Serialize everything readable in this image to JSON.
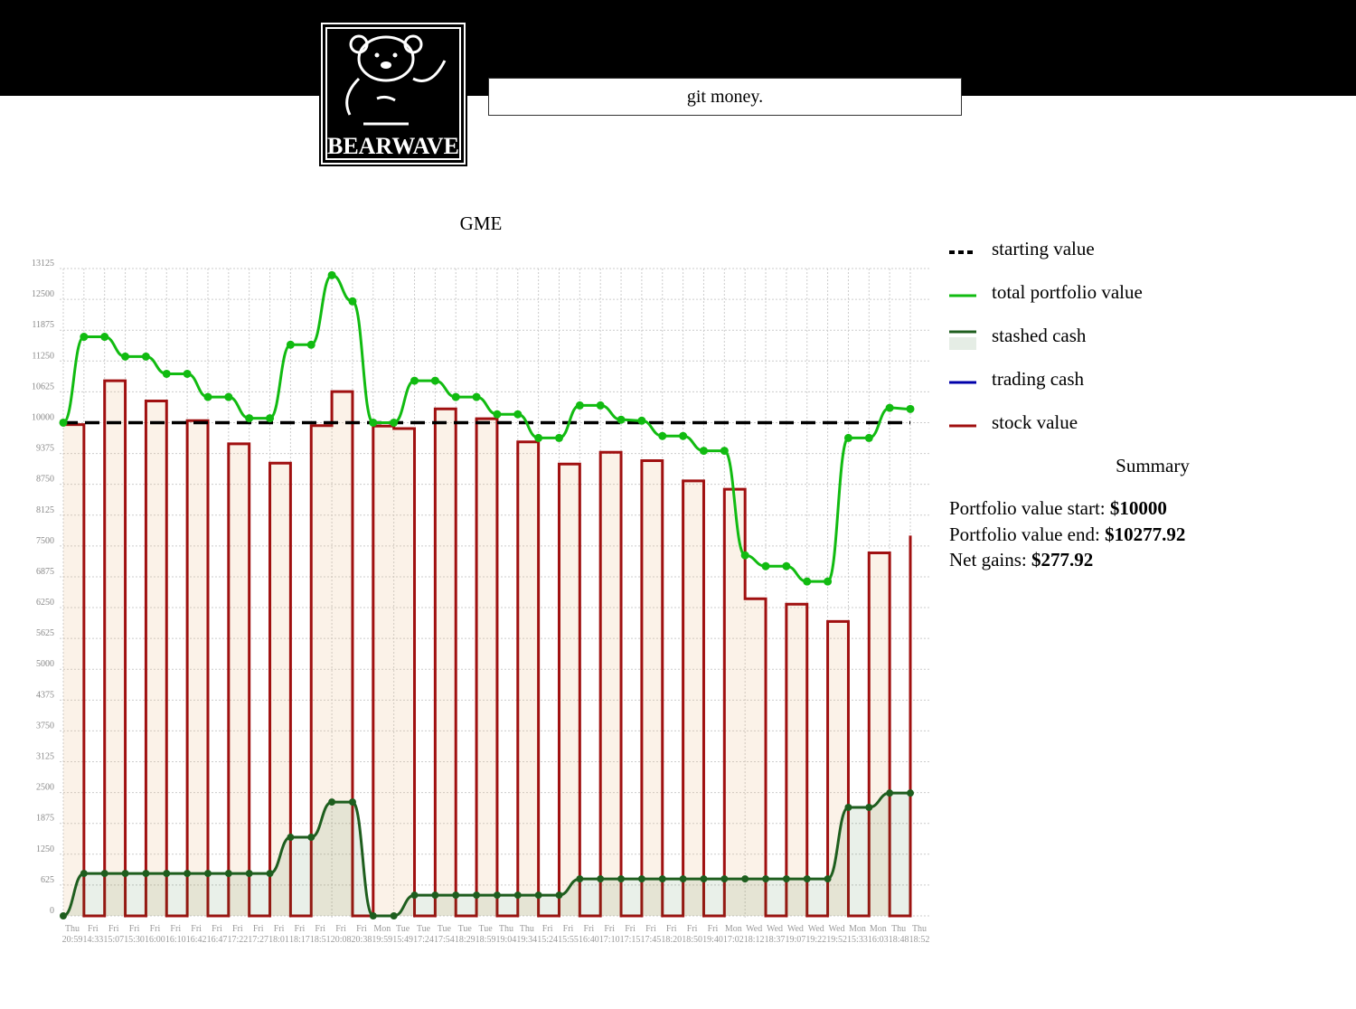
{
  "header": {
    "logo_text": "BEARWAVE",
    "tagline": "git money."
  },
  "chart_data": {
    "type": "line",
    "title": "GME",
    "categories": [
      [
        "Thu",
        "20:59"
      ],
      [
        "Fri",
        "14:33"
      ],
      [
        "Fri",
        "15:07"
      ],
      [
        "Fri",
        "15:30"
      ],
      [
        "Fri",
        "16:00"
      ],
      [
        "Fri",
        "16:10"
      ],
      [
        "Fri",
        "16:42"
      ],
      [
        "Fri",
        "16:47"
      ],
      [
        "Fri",
        "17:22"
      ],
      [
        "Fri",
        "17:27"
      ],
      [
        "Fri",
        "18:01"
      ],
      [
        "Fri",
        "18:17"
      ],
      [
        "Fri",
        "18:51"
      ],
      [
        "Fri",
        "20:08"
      ],
      [
        "Fri",
        "20:38"
      ],
      [
        "Mon",
        "19:59"
      ],
      [
        "Tue",
        "15:49"
      ],
      [
        "Tue",
        "17:24"
      ],
      [
        "Tue",
        "17:54"
      ],
      [
        "Tue",
        "18:29"
      ],
      [
        "Tue",
        "18:59"
      ],
      [
        "Thu",
        "19:04"
      ],
      [
        "Thu",
        "19:34"
      ],
      [
        "Fri",
        "15:24"
      ],
      [
        "Fri",
        "15:55"
      ],
      [
        "Fri",
        "16:40"
      ],
      [
        "Fri",
        "17:10"
      ],
      [
        "Fri",
        "17:15"
      ],
      [
        "Fri",
        "17:45"
      ],
      [
        "Fri",
        "18:20"
      ],
      [
        "Fri",
        "18:50"
      ],
      [
        "Fri",
        "19:40"
      ],
      [
        "Mon",
        "17:02"
      ],
      [
        "Wed",
        "18:12"
      ],
      [
        "Wed",
        "18:37"
      ],
      [
        "Wed",
        "19:07"
      ],
      [
        "Wed",
        "19:22"
      ],
      [
        "Wed",
        "19:52"
      ],
      [
        "Mon",
        "15:33"
      ],
      [
        "Mon",
        "16:03"
      ],
      [
        "Thu",
        "18:48"
      ],
      [
        "Thu",
        "18:52"
      ]
    ],
    "ylim": [
      0,
      13125
    ],
    "yticks": [
      0,
      625,
      1250,
      1875,
      2500,
      3125,
      3750,
      4375,
      5000,
      5625,
      6250,
      6875,
      7500,
      8125,
      8750,
      9375,
      10000,
      10625,
      11250,
      11875,
      12500,
      13125
    ],
    "grid": true,
    "series": [
      {
        "name": "starting value",
        "color": "#000000",
        "value": 10000
      },
      {
        "name": "total portfolio value",
        "color": "#11bb11",
        "values": [
          10000,
          11740,
          11740,
          11340,
          11340,
          10990,
          10990,
          10520,
          10520,
          10090,
          10090,
          11580,
          11580,
          12990,
          12460,
          10000,
          10000,
          10850,
          10850,
          10520,
          10520,
          10170,
          10170,
          9690,
          9690,
          10350,
          10350,
          10060,
          10040,
          9730,
          9730,
          9430,
          9430,
          7310,
          7090,
          7090,
          6780,
          6780,
          9690,
          9690,
          10300,
          10277.92
        ]
      },
      {
        "name": "stashed cash",
        "color": "#1e5e1e",
        "values": [
          0,
          860,
          860,
          860,
          860,
          860,
          860,
          860,
          860,
          860,
          860,
          1594,
          1594,
          2308,
          2308,
          0,
          0,
          420,
          420,
          420,
          420,
          420,
          420,
          420,
          420,
          750,
          750,
          750,
          750,
          750,
          750,
          750,
          750,
          750,
          750,
          750,
          750,
          750,
          2200,
          2200,
          2490,
          2490
        ]
      },
      {
        "name": "trading cash",
        "color": "#0000aa"
      },
      {
        "name": "stock value",
        "color": "#a01010",
        "values": [
          9960,
          0,
          10850,
          0,
          10440,
          0,
          10040,
          0,
          9570,
          0,
          9180,
          0,
          9940,
          10630,
          0,
          9930,
          9880,
          0,
          10280,
          0,
          10080,
          0,
          9610,
          0,
          9160,
          0,
          9400,
          0,
          9230,
          0,
          8820,
          0,
          8650,
          6430,
          0,
          6320,
          0,
          5970,
          0,
          7360,
          0,
          7710
        ]
      }
    ]
  },
  "summary": {
    "title": "Summary",
    "items": [
      {
        "label": "Portfolio value start:",
        "value": "$10000"
      },
      {
        "label": "Portfolio value end:",
        "value": "$10277.92"
      },
      {
        "label": "Net gains:",
        "value": "$277.92"
      }
    ]
  }
}
